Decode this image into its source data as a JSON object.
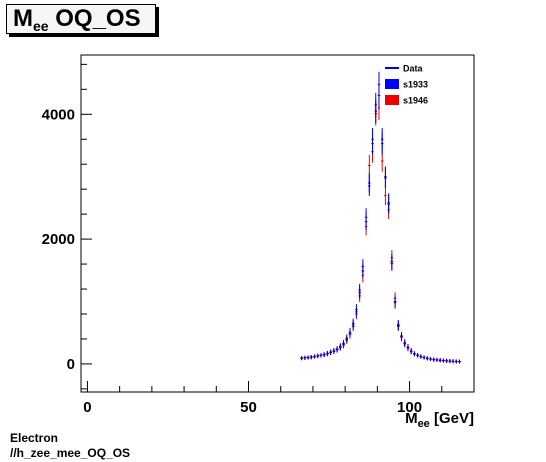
{
  "title": {
    "main": "M",
    "sub": "ee",
    "rest": " OQ_OS"
  },
  "footer": {
    "line1": "Electron",
    "line2": "//h_zee_mee_OQ_OS"
  },
  "colors": {
    "data": "#0000dd",
    "s1933": "#0000ff",
    "s1946": "#ee0000"
  },
  "chart_data": {
    "type": "scatter",
    "title": "M_ee OQ_OS",
    "xlabel": {
      "main": "M",
      "sub": "ee",
      "rest": " [GeV]"
    },
    "ylabel": "",
    "xlim": [
      -2,
      120
    ],
    "ylim": [
      -450,
      4950
    ],
    "xticks": [
      0,
      50,
      100
    ],
    "yticks": [
      0,
      2000,
      4000
    ],
    "legend": {
      "position": "top-right",
      "entries": [
        "Data",
        "s1933",
        "s1946"
      ]
    },
    "series": [
      {
        "name": "s1933",
        "x": [
          66.5,
          67.5,
          68.5,
          69.5,
          70.5,
          71.5,
          72.5,
          73.5,
          74.5,
          75.5,
          76.5,
          77.5,
          78.5,
          79.5,
          80.5,
          81.5,
          82.5,
          83.5,
          84.5,
          85.5,
          86.5,
          87.5,
          88.5,
          89.5,
          90.5,
          91.5,
          92.5,
          93.5,
          94.5,
          95.5,
          96.5,
          97.5,
          98.5,
          99.5,
          100.5,
          101.5,
          102.5,
          103.5,
          104.5,
          105.5,
          106.5,
          107.5,
          108.5,
          109.5,
          110.5,
          111.5,
          112.5,
          113.5,
          114.5,
          115.5
        ],
        "y": [
          95,
          100,
          105,
          110,
          120,
          130,
          140,
          150,
          170,
          190,
          210,
          240,
          280,
          330,
          410,
          510,
          650,
          870,
          1180,
          1560,
          2350,
          2850,
          3600,
          4150,
          4480,
          3600,
          3000,
          2580,
          1610,
          980,
          630,
          450,
          340,
          270,
          210,
          165,
          140,
          120,
          105,
          90,
          80,
          72,
          66,
          60,
          55,
          50,
          46,
          43,
          40,
          38
        ]
      },
      {
        "name": "s1946",
        "x": [
          66.5,
          67.5,
          68.5,
          69.5,
          70.5,
          71.5,
          72.5,
          73.5,
          74.5,
          75.5,
          76.5,
          77.5,
          78.5,
          79.5,
          80.5,
          81.5,
          82.5,
          83.5,
          84.5,
          85.5,
          86.5,
          87.5,
          88.5,
          89.5,
          90.5,
          91.5,
          92.5,
          93.5,
          94.5,
          95.5,
          96.5,
          97.5,
          98.5,
          99.5,
          100.5,
          101.5,
          102.5,
          103.5,
          104.5,
          105.5,
          106.5,
          107.5,
          108.5,
          109.5,
          110.5,
          111.5,
          112.5,
          113.5,
          114.5,
          115.5
        ],
        "y": [
          90,
          95,
          100,
          105,
          115,
          125,
          135,
          145,
          160,
          180,
          200,
          225,
          260,
          300,
          380,
          470,
          600,
          800,
          1090,
          1420,
          2200,
          3180,
          3400,
          4010,
          4100,
          3250,
          2700,
          2470,
          1700,
          1050,
          600,
          420,
          320,
          250,
          195,
          160,
          135,
          115,
          100,
          86,
          76,
          68,
          62,
          57,
          52,
          48,
          44,
          41,
          38,
          36
        ]
      },
      {
        "name": "Data",
        "x": [
          66.5,
          67.5,
          68.5,
          69.5,
          70.5,
          71.5,
          72.5,
          73.5,
          74.5,
          75.5,
          76.5,
          77.5,
          78.5,
          79.5,
          80.5,
          81.5,
          82.5,
          83.5,
          84.5,
          85.5,
          86.5,
          87.5,
          88.5,
          89.5,
          90.5,
          91.5,
          92.5,
          93.5,
          94.5,
          95.5,
          96.5,
          97.5,
          98.5,
          99.5,
          100.5,
          101.5,
          102.5,
          103.5,
          104.5,
          105.5,
          106.5,
          107.5,
          108.5,
          109.5,
          110.5,
          111.5,
          112.5,
          113.5,
          114.5,
          115.5
        ],
        "y": [
          92,
          98,
          102,
          108,
          118,
          128,
          138,
          148,
          165,
          185,
          205,
          232,
          270,
          315,
          395,
          490,
          625,
          835,
          1140,
          1490,
          2280,
          2900,
          3530,
          4050,
          4300,
          3530,
          2980,
          2560,
          1640,
          1000,
          615,
          440,
          330,
          262,
          205,
          162,
          138,
          118,
          103,
          88,
          78,
          70,
          64,
          58,
          54,
          49,
          45,
          42,
          39,
          37
        ]
      }
    ]
  }
}
